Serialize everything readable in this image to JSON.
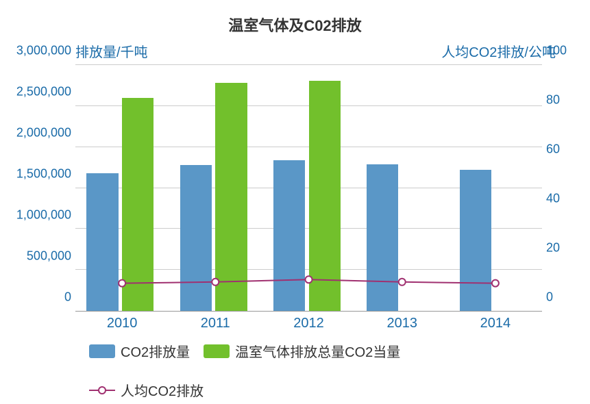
{
  "chart": {
    "type": "grouped-bar-with-line-dual-axis",
    "title": "温室气体及C02排放",
    "title_fontsize": 22,
    "title_color": "#333333",
    "background_color": "#ffffff",
    "grid_color": "#cccccc",
    "axis_color": "#1a6ba8",
    "axis_fontsize": 20,
    "tick_fontsize": 18,
    "y_left": {
      "title": "排放量/千吨",
      "min": 0,
      "max": 3000000,
      "ticks": [
        0,
        500000,
        1000000,
        1500000,
        2000000,
        2500000,
        3000000
      ],
      "tick_labels": [
        "0",
        "500,000",
        "1,000,000",
        "1,500,000",
        "2,000,000",
        "2,500,000",
        "3,000,000"
      ]
    },
    "y_right": {
      "title": "人均CO2排放/公吨",
      "min": 0,
      "max": 100,
      "ticks": [
        0,
        20,
        40,
        60,
        80,
        100
      ],
      "tick_labels": [
        "0",
        "20",
        "40",
        "60",
        "80",
        "100"
      ]
    },
    "categories": [
      "2010",
      "2011",
      "2012",
      "2013",
      "2014"
    ],
    "series": [
      {
        "name": "CO2排放量",
        "type": "bar",
        "axis": "left",
        "color": "#5a97c7",
        "values": [
          1680000,
          1780000,
          1840000,
          1790000,
          1720000
        ],
        "bar_width_frac": 0.34,
        "bar_offset_frac": 0.12
      },
      {
        "name": "温室气体排放总量CO2当量",
        "type": "bar",
        "axis": "left",
        "color": "#72c02c",
        "values": [
          2600000,
          2780000,
          2810000,
          null,
          null
        ],
        "bar_width_frac": 0.34,
        "bar_offset_frac": 0.5
      },
      {
        "name": "人均CO2排放",
        "type": "line",
        "axis": "right",
        "color": "#a03070",
        "marker": "circle-open",
        "marker_size": 10,
        "marker_fill": "#ffffff",
        "line_width": 2,
        "values": [
          11.5,
          12,
          13,
          12,
          11.5
        ]
      }
    ],
    "legend": {
      "items": [
        {
          "label": "CO2排放量",
          "swatch": "#5a97c7",
          "type": "bar"
        },
        {
          "label": "温室气体排放总量CO2当量",
          "swatch": "#72c02c",
          "type": "bar"
        },
        {
          "label": "人均CO2排放",
          "swatch": "#a03070",
          "type": "line"
        }
      ],
      "fontsize": 20
    }
  }
}
